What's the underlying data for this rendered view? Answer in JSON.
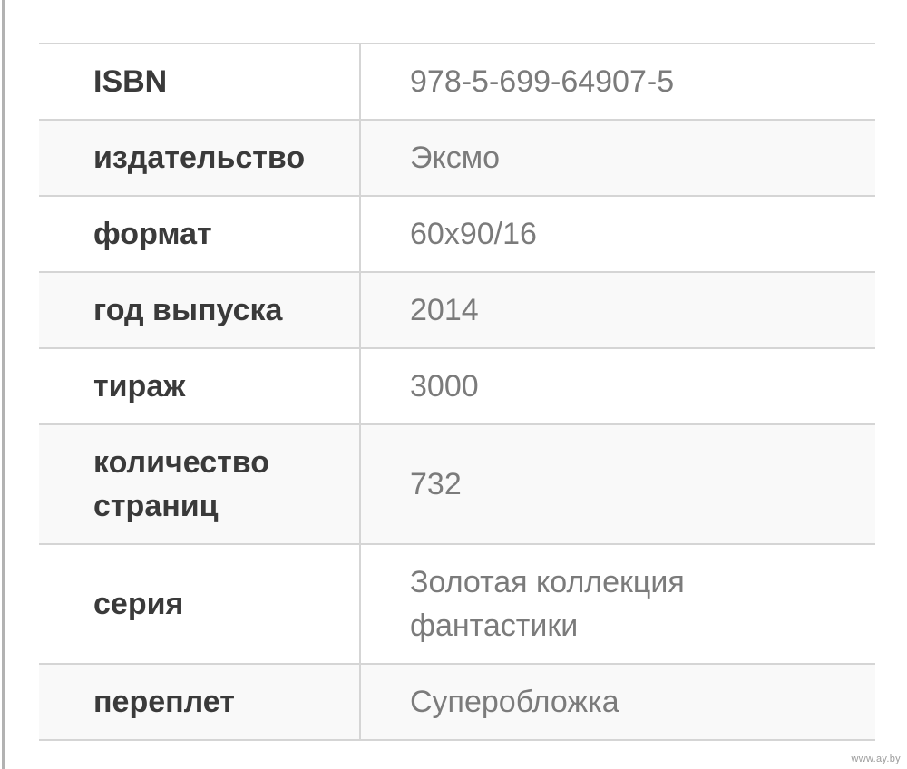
{
  "page": {
    "watermark": "www.ay.by"
  },
  "colors": {
    "border": "#d5d5d5",
    "zebra_row_bg": "#f9f9f9",
    "label_text": "#3a3a3a",
    "value_text": "#7b7b7b",
    "page_edge_line": "#b2b2b2",
    "watermark_text": "#9c9c9c"
  },
  "spec_table": {
    "rows": [
      {
        "label": "ISBN",
        "value": "978-5-699-64907-5"
      },
      {
        "label": "издательство",
        "value": "Эксмо"
      },
      {
        "label": "формат",
        "value": "60x90/16"
      },
      {
        "label": "год выпуска",
        "value": "2014"
      },
      {
        "label": "тираж",
        "value": "3000"
      },
      {
        "label": "количество страниц",
        "value": "732"
      },
      {
        "label": "серия",
        "value": "Золотая коллекция фантастики"
      },
      {
        "label": "переплет",
        "value": "Суперобложка"
      }
    ]
  }
}
